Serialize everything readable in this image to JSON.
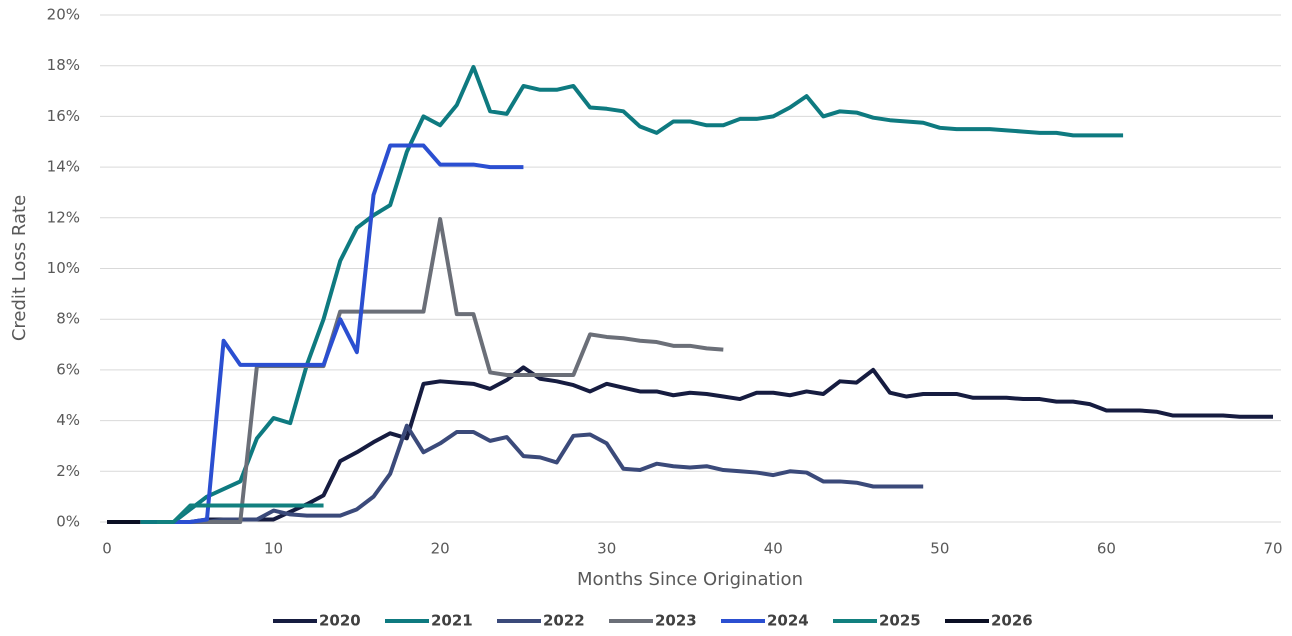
{
  "chart_data": {
    "type": "line",
    "xlabel": "Months Since Origination",
    "ylabel": "Credit Loss Rate",
    "xlim": [
      0,
      70
    ],
    "xticks": [
      0,
      10,
      20,
      30,
      40,
      50,
      60,
      70
    ],
    "ylim": [
      0,
      20
    ],
    "yticks": [
      {
        "value": 0,
        "label": "0%"
      },
      {
        "value": 2,
        "label": "2%"
      },
      {
        "value": 4,
        "label": "4%"
      },
      {
        "value": 6,
        "label": "6%"
      },
      {
        "value": 8,
        "label": "8%"
      },
      {
        "value": 10,
        "label": "10%"
      },
      {
        "value": 12,
        "label": "12%"
      },
      {
        "value": 14,
        "label": "14%"
      },
      {
        "value": 16,
        "label": "16%"
      },
      {
        "value": 18,
        "label": "18%"
      },
      {
        "value": 20,
        "label": "20%"
      }
    ],
    "grid": true,
    "legend": "bottom",
    "series": [
      {
        "name": "2020",
        "color": "#161c40",
        "x": [
          3,
          4,
          5,
          6,
          7,
          8,
          9,
          10,
          11,
          12,
          13,
          14,
          15,
          16,
          17,
          18,
          19,
          20,
          21,
          22,
          23,
          24,
          25,
          26,
          27,
          28,
          29,
          30,
          31,
          32,
          33,
          34,
          35,
          36,
          37,
          38,
          39,
          40,
          41,
          42,
          43,
          44,
          45,
          46,
          47,
          48,
          49,
          50,
          51,
          52,
          53,
          54,
          55,
          56,
          57,
          58,
          59,
          60,
          61,
          62,
          63,
          64,
          65,
          66,
          67,
          68,
          69,
          70
        ],
        "values": [
          0,
          0,
          0,
          0.1,
          0.1,
          0.1,
          0.1,
          0.1,
          0.4,
          0.7,
          1.05,
          2.4,
          2.75,
          3.15,
          3.5,
          3.3,
          5.45,
          5.55,
          5.5,
          5.45,
          5.25,
          5.6,
          6.1,
          5.65,
          5.55,
          5.4,
          5.15,
          5.45,
          5.3,
          5.15,
          5.15,
          5.0,
          5.1,
          5.05,
          4.95,
          4.85,
          5.1,
          5.1,
          5.0,
          5.15,
          5.05,
          5.55,
          5.5,
          6.0,
          5.1,
          4.95,
          5.05,
          5.05,
          5.05,
          4.9,
          4.9,
          4.9,
          4.85,
          4.85,
          4.75,
          4.75,
          4.65,
          4.4,
          4.4,
          4.4,
          4.35,
          4.2,
          4.2,
          4.2,
          4.2,
          4.15,
          4.15,
          4.15
        ]
      },
      {
        "name": "2021",
        "color": "#0e7a80",
        "x": [
          2,
          3,
          4,
          5,
          6,
          7,
          8,
          9,
          10,
          11,
          12,
          13,
          14,
          15,
          16,
          17,
          18,
          19,
          20,
          21,
          22,
          23,
          24,
          25,
          26,
          27,
          28,
          29,
          30,
          31,
          32,
          33,
          34,
          35,
          36,
          37,
          38,
          39,
          40,
          41,
          42,
          43,
          44,
          45,
          46,
          47,
          48,
          49,
          50,
          51,
          52,
          53,
          54,
          55,
          56,
          57,
          58,
          59,
          60,
          61
        ],
        "values": [
          0,
          0,
          0,
          0.5,
          1.0,
          1.3,
          1.6,
          3.3,
          4.1,
          3.9,
          6.2,
          8.0,
          10.3,
          11.6,
          12.1,
          12.5,
          14.6,
          16.0,
          15.65,
          16.45,
          17.95,
          16.2,
          16.1,
          17.2,
          17.05,
          17.05,
          17.2,
          16.35,
          16.3,
          16.2,
          15.6,
          15.35,
          15.8,
          15.8,
          15.65,
          15.65,
          15.9,
          15.9,
          16.0,
          16.35,
          16.8,
          16.0,
          16.2,
          16.15,
          15.95,
          15.85,
          15.8,
          15.75,
          15.55,
          15.5,
          15.5,
          15.5,
          15.45,
          15.4,
          15.35,
          15.35,
          15.25,
          15.25,
          15.25,
          15.25
        ]
      },
      {
        "name": "2022",
        "color": "#3b4a7a",
        "x": [
          4,
          5,
          6,
          7,
          8,
          9,
          10,
          11,
          12,
          13,
          14,
          15,
          16,
          17,
          18,
          19,
          20,
          21,
          22,
          23,
          24,
          25,
          26,
          27,
          28,
          29,
          30,
          31,
          32,
          33,
          34,
          35,
          36,
          37,
          38,
          39,
          40,
          41,
          42,
          43,
          44,
          45,
          46,
          47,
          48,
          49
        ],
        "values": [
          0,
          0,
          0,
          0.1,
          0.1,
          0.1,
          0.45,
          0.3,
          0.25,
          0.25,
          0.25,
          0.5,
          1.0,
          1.9,
          3.8,
          2.75,
          3.1,
          3.55,
          3.55,
          3.2,
          3.35,
          2.6,
          2.55,
          2.35,
          3.4,
          3.45,
          3.1,
          2.1,
          2.05,
          2.3,
          2.2,
          2.15,
          2.2,
          2.05,
          2.0,
          1.95,
          1.85,
          2.0,
          1.95,
          1.6,
          1.6,
          1.55,
          1.4,
          1.4,
          1.4,
          1.4
        ]
      },
      {
        "name": "2023",
        "color": "#6b6f78",
        "x": [
          5,
          6,
          7,
          8,
          9,
          10,
          11,
          12,
          13,
          14,
          15,
          16,
          17,
          18,
          19,
          20,
          21,
          22,
          23,
          24,
          25,
          26,
          27,
          28,
          29,
          30,
          31,
          32,
          33,
          34,
          35,
          36,
          37
        ],
        "values": [
          0,
          0,
          0,
          0,
          6.15,
          6.15,
          6.15,
          6.15,
          6.15,
          8.3,
          8.3,
          8.3,
          8.3,
          8.3,
          8.3,
          11.95,
          8.2,
          8.2,
          5.9,
          5.8,
          5.8,
          5.8,
          5.8,
          5.8,
          7.4,
          7.3,
          7.25,
          7.15,
          7.1,
          6.95,
          6.95,
          6.85,
          6.8
        ]
      },
      {
        "name": "2024",
        "color": "#2b4fd1",
        "x": [
          4,
          5,
          6,
          7,
          8,
          9,
          10,
          11,
          12,
          13,
          14,
          15,
          16,
          17,
          18,
          19,
          20,
          21,
          22,
          23,
          24,
          25
        ],
        "values": [
          0,
          0,
          0.1,
          7.15,
          6.2,
          6.2,
          6.2,
          6.2,
          6.2,
          6.2,
          8.0,
          6.7,
          12.9,
          14.85,
          14.85,
          14.85,
          14.1,
          14.1,
          14.1,
          14.0,
          14.0,
          14.0
        ]
      },
      {
        "name": "2025",
        "color": "#12807f",
        "x": [
          3,
          4,
          5,
          6,
          7,
          8,
          9,
          10,
          11,
          12,
          13
        ],
        "values": [
          0,
          0,
          0.65,
          0.65,
          0.65,
          0.65,
          0.65,
          0.65,
          0.65,
          0.65,
          0.65
        ]
      },
      {
        "name": "2026",
        "color": "#0b0f24",
        "x": [
          0,
          1,
          2
        ],
        "values": [
          0,
          0,
          0
        ]
      }
    ]
  }
}
